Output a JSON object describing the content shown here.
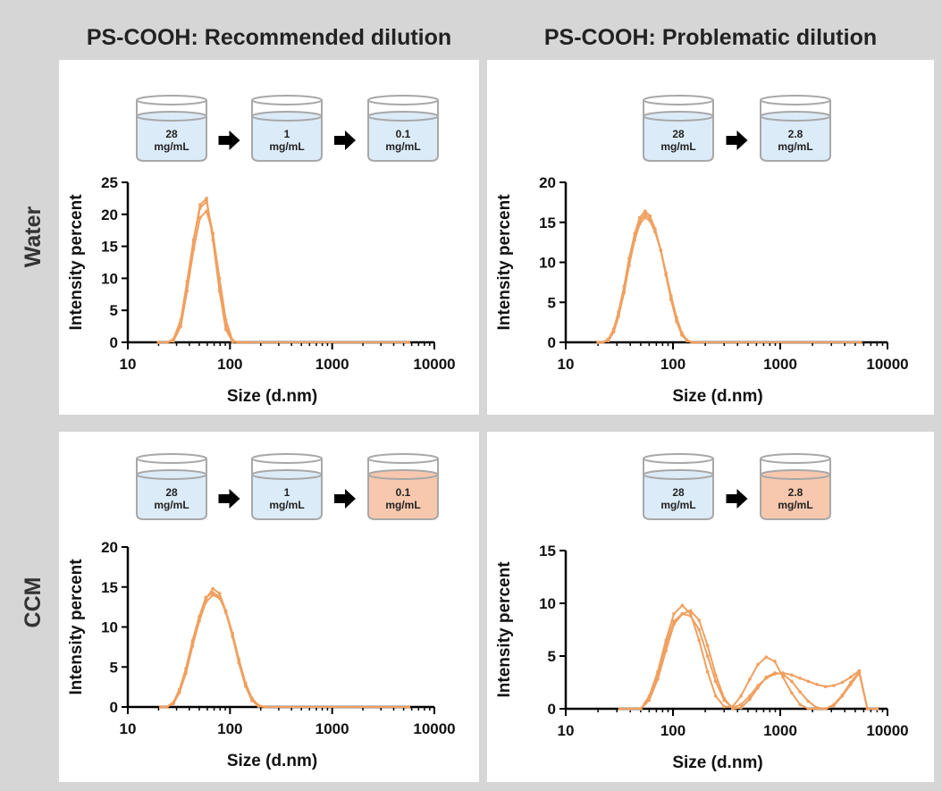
{
  "column_titles": [
    "PS-COOH: Recommended dilution",
    "PS-COOH: Problematic dilution"
  ],
  "row_labels": [
    "Water",
    "CCM"
  ],
  "colors": {
    "series": "#f0a060",
    "water_fill": "#dcebf8",
    "ccm_fill": "#f7c8ae",
    "beaker_stroke": "#a8a8a8",
    "arrow": "#000000"
  },
  "icons": [
    "beaker-icon",
    "right-arrow-icon"
  ],
  "chart_data": [
    {
      "type": "line",
      "title": "",
      "xlabel": "Size (d.nm)",
      "ylabel": "Intensity percent",
      "xscale": "log",
      "xlim": [
        10,
        10000
      ],
      "xticks": [
        "10",
        "100",
        "1000",
        "10000"
      ],
      "ylim": [
        0,
        25
      ],
      "yticks": [
        "0",
        "5",
        "10",
        "15",
        "20",
        "25"
      ],
      "dilution_steps": [
        {
          "label": [
            "28",
            "mg/mL"
          ],
          "medium": "water"
        },
        {
          "label": [
            "1",
            "mg/mL"
          ],
          "medium": "water"
        },
        {
          "label": [
            "0.1",
            "mg/mL"
          ],
          "medium": "water"
        }
      ],
      "series": [
        {
          "x": [
            20,
            24,
            28,
            33,
            38,
            44,
            51,
            59,
            68,
            79,
            91,
            106,
            122,
            142,
            5600
          ],
          "y": [
            0,
            0,
            0.3,
            3,
            9,
            16,
            21.5,
            22.5,
            16,
            8,
            2,
            0.1,
            0,
            0,
            0
          ]
        },
        {
          "x": [
            20,
            24,
            28,
            33,
            38,
            44,
            51,
            59,
            68,
            79,
            91,
            106,
            122,
            142,
            5600
          ],
          "y": [
            0,
            0,
            0.5,
            3.5,
            9.5,
            16,
            21,
            22,
            17,
            9,
            2.5,
            0.1,
            0,
            0,
            0
          ]
        },
        {
          "x": [
            20,
            24,
            28,
            33,
            38,
            44,
            51,
            59,
            68,
            79,
            91,
            106,
            122,
            142,
            5600
          ],
          "y": [
            0,
            0,
            0.2,
            2.5,
            8,
            14.5,
            19.5,
            20.5,
            17,
            10,
            3.5,
            0.3,
            0,
            0,
            0
          ]
        }
      ]
    },
    {
      "type": "line",
      "title": "",
      "xlabel": "Size (d.nm)",
      "ylabel": "Intensity percent",
      "xscale": "log",
      "xlim": [
        10,
        10000
      ],
      "xticks": [
        "10",
        "100",
        "1000",
        "10000"
      ],
      "ylim": [
        0,
        20
      ],
      "yticks": [
        "0",
        "5",
        "10",
        "15",
        "20"
      ],
      "dilution_steps": [
        {
          "label": [
            "28",
            "mg/mL"
          ],
          "medium": "water"
        },
        {
          "label": [
            "2.8",
            "mg/mL"
          ],
          "medium": "water"
        }
      ],
      "series": [
        {
          "x": [
            20,
            22,
            25,
            28,
            31,
            35,
            39,
            44,
            49,
            55,
            61,
            68,
            77,
            86,
            96,
            108,
            121,
            135,
            151,
            169,
            5600
          ],
          "y": [
            0,
            0,
            0.3,
            1.5,
            3.5,
            6.5,
            10,
            13.2,
            15.2,
            16,
            15.5,
            14,
            11.5,
            8.5,
            5.5,
            2.8,
            1,
            0.2,
            0,
            0,
            0
          ]
        },
        {
          "x": [
            20,
            22,
            25,
            28,
            31,
            35,
            39,
            44,
            49,
            55,
            61,
            68,
            77,
            86,
            96,
            108,
            121,
            135,
            151,
            169,
            5600
          ],
          "y": [
            0,
            0,
            0.4,
            1.7,
            3.8,
            7,
            10.5,
            13.6,
            15.6,
            16.4,
            15.8,
            14.2,
            11.5,
            8.4,
            5.3,
            2.6,
            0.9,
            0.2,
            0,
            0,
            0
          ]
        },
        {
          "x": [
            20,
            22,
            25,
            28,
            31,
            35,
            39,
            44,
            49,
            55,
            61,
            68,
            77,
            86,
            96,
            108,
            121,
            135,
            151,
            169,
            5600
          ],
          "y": [
            0,
            0,
            0.2,
            1.3,
            3.2,
            6.2,
            9.6,
            12.8,
            14.8,
            15.6,
            15.2,
            13.8,
            11.5,
            8.7,
            5.8,
            3.1,
            1.2,
            0.3,
            0,
            0,
            0
          ]
        }
      ]
    },
    {
      "type": "line",
      "title": "",
      "xlabel": "Size (d.nm)",
      "ylabel": "Intensity percent",
      "xscale": "log",
      "xlim": [
        10,
        10000
      ],
      "xticks": [
        "10",
        "100",
        "1000",
        "10000"
      ],
      "ylim": [
        0,
        20
      ],
      "yticks": [
        "0",
        "5",
        "10",
        "15",
        "20"
      ],
      "dilution_steps": [
        {
          "label": [
            "28",
            "mg/mL"
          ],
          "medium": "water"
        },
        {
          "label": [
            "1",
            "mg/mL"
          ],
          "medium": "water"
        },
        {
          "label": [
            "0.1",
            "mg/mL"
          ],
          "medium": "ccm"
        }
      ],
      "series": [
        {
          "x": [
            21,
            24,
            28,
            32,
            37,
            43,
            50,
            58,
            68,
            79,
            91,
            106,
            122,
            142,
            164,
            190,
            220,
            5600
          ],
          "y": [
            0,
            0,
            0.5,
            2,
            4.5,
            8,
            11,
            13.5,
            14.8,
            14.2,
            12,
            8.8,
            5.5,
            2.6,
            0.8,
            0.1,
            0,
            0
          ]
        },
        {
          "x": [
            21,
            24,
            28,
            32,
            37,
            43,
            50,
            58,
            68,
            79,
            91,
            106,
            122,
            142,
            164,
            190,
            220,
            5600
          ],
          "y": [
            0,
            0,
            0.6,
            2.2,
            4.8,
            8.3,
            11.3,
            13.7,
            14.3,
            13.8,
            11.8,
            8.9,
            5.8,
            2.9,
            1,
            0.2,
            0,
            0
          ]
        },
        {
          "x": [
            21,
            24,
            28,
            32,
            37,
            43,
            50,
            58,
            68,
            79,
            91,
            106,
            122,
            142,
            164,
            190,
            220,
            5600
          ],
          "y": [
            0,
            0,
            0.4,
            1.8,
            4.2,
            7.6,
            10.7,
            13.1,
            14,
            13.6,
            12,
            9.2,
            6,
            3,
            1.1,
            0.2,
            0,
            0
          ]
        }
      ]
    },
    {
      "type": "line",
      "title": "",
      "xlabel": "Size (d.nm)",
      "ylabel": "Intensity percent",
      "xscale": "log",
      "xlim": [
        10,
        10000
      ],
      "xticks": [
        "10",
        "100",
        "1000",
        "10000"
      ],
      "ylim": [
        0,
        15
      ],
      "yticks": [
        "0",
        "5",
        "10",
        "15"
      ],
      "dilution_steps": [
        {
          "label": [
            "28",
            "mg/mL"
          ],
          "medium": "water"
        },
        {
          "label": [
            "2.8",
            "mg/mL"
          ],
          "medium": "ccm"
        }
      ],
      "series": [
        {
          "x": [
            32,
            40,
            50,
            60,
            72,
            86,
            102,
            122,
            146,
            175,
            210,
            250,
            300,
            360,
            430,
            520,
            620,
            740,
            890,
            1060,
            1280,
            1530,
            1830,
            2200,
            2640,
            3160,
            3790,
            4540,
            5450,
            6500,
            8000
          ],
          "y": [
            0,
            0,
            0,
            1.2,
            3.5,
            6.5,
            9,
            9.8,
            9,
            6.5,
            3.5,
            1.2,
            0.2,
            0.2,
            1.2,
            2.8,
            4.2,
            4.9,
            4.5,
            3,
            1.5,
            0.4,
            0,
            0,
            0,
            0.3,
            1.2,
            2.3,
            3.4,
            0,
            0
          ]
        },
        {
          "x": [
            32,
            40,
            50,
            60,
            72,
            86,
            102,
            122,
            146,
            175,
            210,
            250,
            300,
            360,
            430,
            520,
            620,
            740,
            890,
            1060,
            1280,
            1530,
            1830,
            2200,
            2640,
            3160,
            3790,
            4540,
            5450,
            6500,
            8000
          ],
          "y": [
            0,
            0,
            0,
            0.8,
            2.8,
            5.5,
            8,
            9,
            9.3,
            8.4,
            6,
            3.2,
            1,
            0,
            0.1,
            0.9,
            2,
            3,
            3.4,
            3.3,
            2.6,
            1.6,
            0.7,
            0.1,
            0,
            0.4,
            1.3,
            2.5,
            3.5,
            0,
            0
          ]
        },
        {
          "x": [
            32,
            40,
            50,
            60,
            72,
            86,
            102,
            122,
            146,
            175,
            210,
            250,
            300,
            360,
            430,
            520,
            620,
            740,
            890,
            1060,
            1280,
            1530,
            1830,
            2200,
            2640,
            3160,
            3790,
            4540,
            5450,
            6500,
            8000
          ],
          "y": [
            0,
            0,
            0,
            1,
            3.2,
            6,
            8.3,
            9,
            8.8,
            7.5,
            5,
            2.6,
            0.8,
            0.1,
            0.4,
            1.2,
            2.2,
            2.9,
            3.3,
            3.4,
            3.2,
            2.9,
            2.6,
            2.3,
            2.1,
            2.2,
            2.5,
            3,
            3.6,
            0,
            0
          ]
        }
      ]
    }
  ]
}
